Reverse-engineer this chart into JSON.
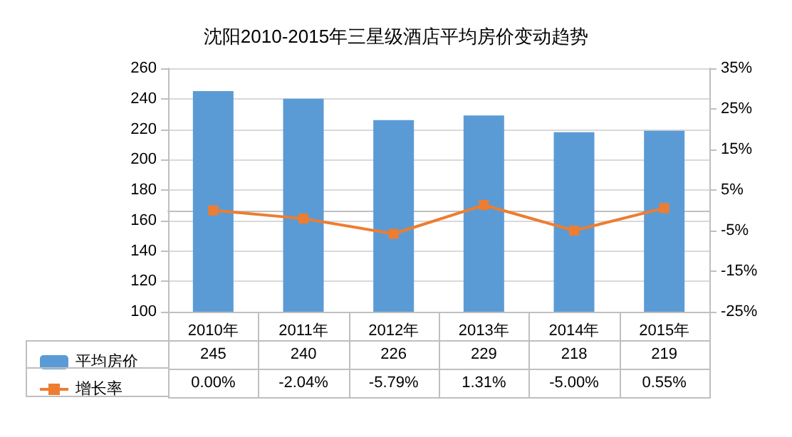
{
  "chart_data": {
    "type": "bar",
    "title": "沈阳2010-2015年三星级酒店平均房价变动趋势",
    "categories": [
      "2010年",
      "2011年",
      "2012年",
      "2013年",
      "2014年",
      "2015年"
    ],
    "series": [
      {
        "name": "平均房价",
        "color": "#5b9bd5",
        "values": [
          245,
          240,
          226,
          229,
          218,
          219
        ],
        "value_labels": [
          "245",
          "240",
          "226",
          "229",
          "218",
          "219"
        ]
      },
      {
        "name": "增长率",
        "type": "line",
        "axis": "y2",
        "color": "#ed7d31",
        "marker": "square",
        "line_style": "solid",
        "values": [
          0,
          -2.04,
          -5.79,
          1.31,
          -5.0,
          0.55
        ],
        "value_labels": [
          "0.00%",
          "-2.04%",
          "-5.79%",
          "1.31%",
          "-5.00%",
          "0.55%"
        ]
      }
    ],
    "ylim": [
      100,
      260
    ],
    "yticks": [
      100,
      120,
      140,
      160,
      180,
      200,
      220,
      240,
      260
    ],
    "y2lim": [
      -25,
      35
    ],
    "y2ticks": [
      {
        "value": -25,
        "label": "-25%"
      },
      {
        "value": -15,
        "label": "-15%"
      },
      {
        "value": -5,
        "label": "-5%"
      },
      {
        "value": 5,
        "label": "5%"
      },
      {
        "value": 15,
        "label": "15%"
      },
      {
        "value": 25,
        "label": "25%"
      },
      {
        "value": 35,
        "label": "35%"
      }
    ],
    "grid": "y",
    "legend": "bottom left"
  }
}
